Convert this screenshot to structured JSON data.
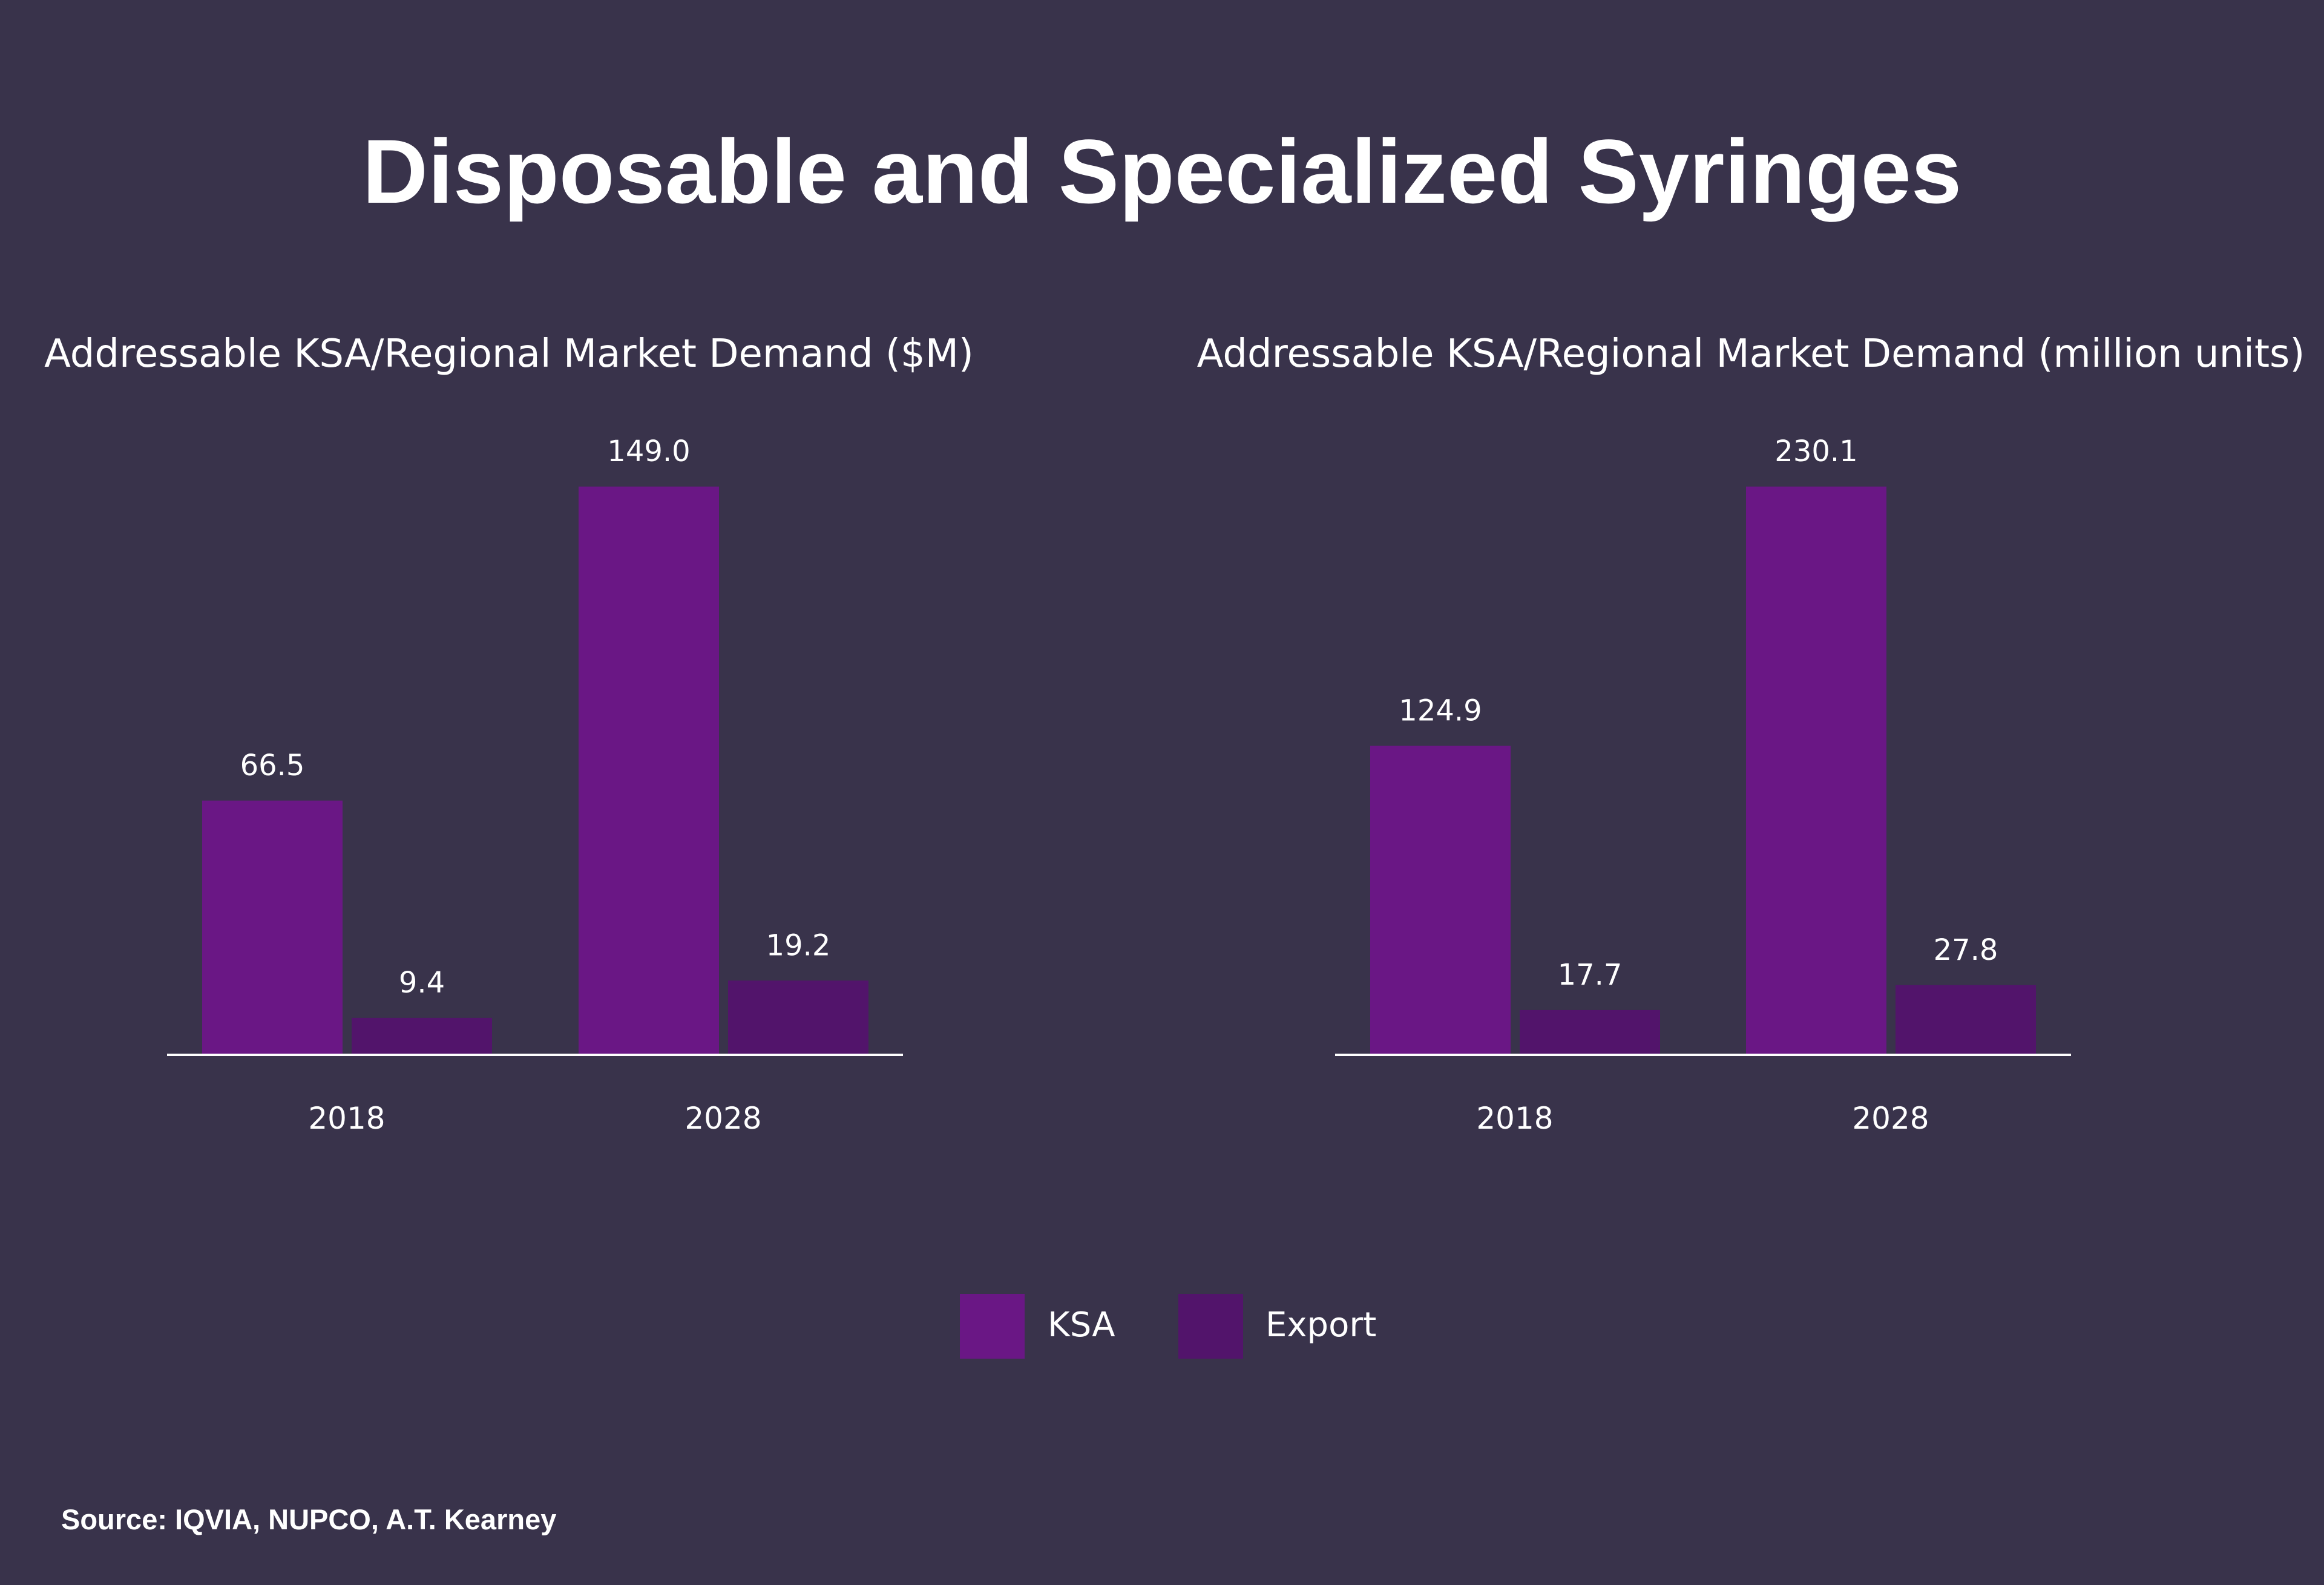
{
  "title": "Disposable and Specialized Syringes",
  "source": "Source: IQVIA, NUPCO, A.T. Kearney",
  "colors": {
    "background": "#39334b",
    "ksa": "#6a1785",
    "export": "#52146b",
    "axis": "#ffffff",
    "text": "#ffffff"
  },
  "legend": [
    {
      "name": "KSA",
      "color": "#6a1785"
    },
    {
      "name": "Export",
      "color": "#52146b"
    }
  ],
  "chart_data": [
    {
      "type": "bar",
      "title": "Addressable KSA/Regional Market Demand ($M)",
      "categories": [
        "2018",
        "2028"
      ],
      "series": [
        {
          "name": "KSA",
          "values": [
            66.5,
            149.0
          ],
          "labels": [
            "66.5",
            "149.0"
          ]
        },
        {
          "name": "Export",
          "values": [
            9.4,
            19.2
          ],
          "labels": [
            "9.4",
            "19.2"
          ]
        }
      ],
      "ylim": [
        0,
        149.0
      ],
      "xlabel": "",
      "ylabel": "",
      "grid": false,
      "legend_position": "bottom-center"
    },
    {
      "type": "bar",
      "title": "Addressable KSA/Regional Market Demand (million units)",
      "categories": [
        "2018",
        "2028"
      ],
      "series": [
        {
          "name": "KSA",
          "values": [
            124.9,
            230.1
          ],
          "labels": [
            "124.9",
            "230.1"
          ]
        },
        {
          "name": "Export",
          "values": [
            17.7,
            27.8
          ],
          "labels": [
            "17.7",
            "27.8"
          ]
        }
      ],
      "ylim": [
        0,
        230.1
      ],
      "xlabel": "",
      "ylabel": "",
      "grid": false,
      "legend_position": "bottom-center"
    }
  ]
}
